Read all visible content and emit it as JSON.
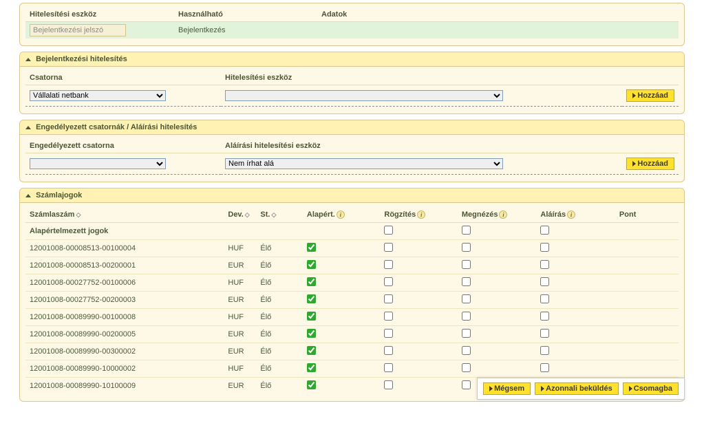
{
  "section1": {
    "headers": {
      "eszkoz": "Hitelesítési eszköz",
      "hasznalhato": "Használható",
      "adatok": "Adatok"
    },
    "row": {
      "eszkoz_value": "Bejelentkezési jelszó",
      "hasznalhato_value": "Bejelentkezés"
    }
  },
  "section2": {
    "title": "Bejelentkezési hitelesítés",
    "headers": {
      "csatorna": "Csatorna",
      "eszkoz": "Hitelesítési eszköz"
    },
    "csatorna_selected": "Vállalati netbank",
    "hitel_selected": "",
    "btn_add": "Hozzáad"
  },
  "section3": {
    "title": "Engedélyezett csatornák / Aláírási hitelesítés",
    "headers": {
      "csatorna": "Engedélyezett csatorna",
      "alairas": "Aláírási hitelesítési eszköz"
    },
    "csatorna_selected": "",
    "alairas_selected": "Nem írhat alá",
    "btn_add": "Hozzáad"
  },
  "section4": {
    "title": "Számlajogok",
    "headers": {
      "szamlaszam": "Számlaszám",
      "dev": "Dev.",
      "st": "St.",
      "alapert": "Alapért.",
      "rogzites": "Rögzítés",
      "megnezes": "Megnézés",
      "alairas": "Aláírás",
      "pont": "Pont"
    },
    "defaults_label": "Alapértelmezett jogok",
    "rows": [
      {
        "num": "12001008-00008513-00100004",
        "dev": "HUF",
        "st": "Élő",
        "def": true
      },
      {
        "num": "12001008-00008513-00200001",
        "dev": "EUR",
        "st": "Élő",
        "def": true
      },
      {
        "num": "12001008-00027752-00100006",
        "dev": "HUF",
        "st": "Élő",
        "def": true
      },
      {
        "num": "12001008-00027752-00200003",
        "dev": "EUR",
        "st": "Élő",
        "def": true
      },
      {
        "num": "12001008-00089990-00100008",
        "dev": "HUF",
        "st": "Élő",
        "def": true
      },
      {
        "num": "12001008-00089990-00200005",
        "dev": "EUR",
        "st": "Élő",
        "def": true
      },
      {
        "num": "12001008-00089990-00300002",
        "dev": "EUR",
        "st": "Élő",
        "def": true
      },
      {
        "num": "12001008-00089990-10000002",
        "dev": "HUF",
        "st": "Élő",
        "def": true
      },
      {
        "num": "12001008-00089990-10100009",
        "dev": "EUR",
        "st": "Élő",
        "def": true
      }
    ]
  },
  "actions": {
    "megsem": "Mégsem",
    "azonnali": "Azonnali beküldés",
    "csomagba": "Csomagba"
  }
}
